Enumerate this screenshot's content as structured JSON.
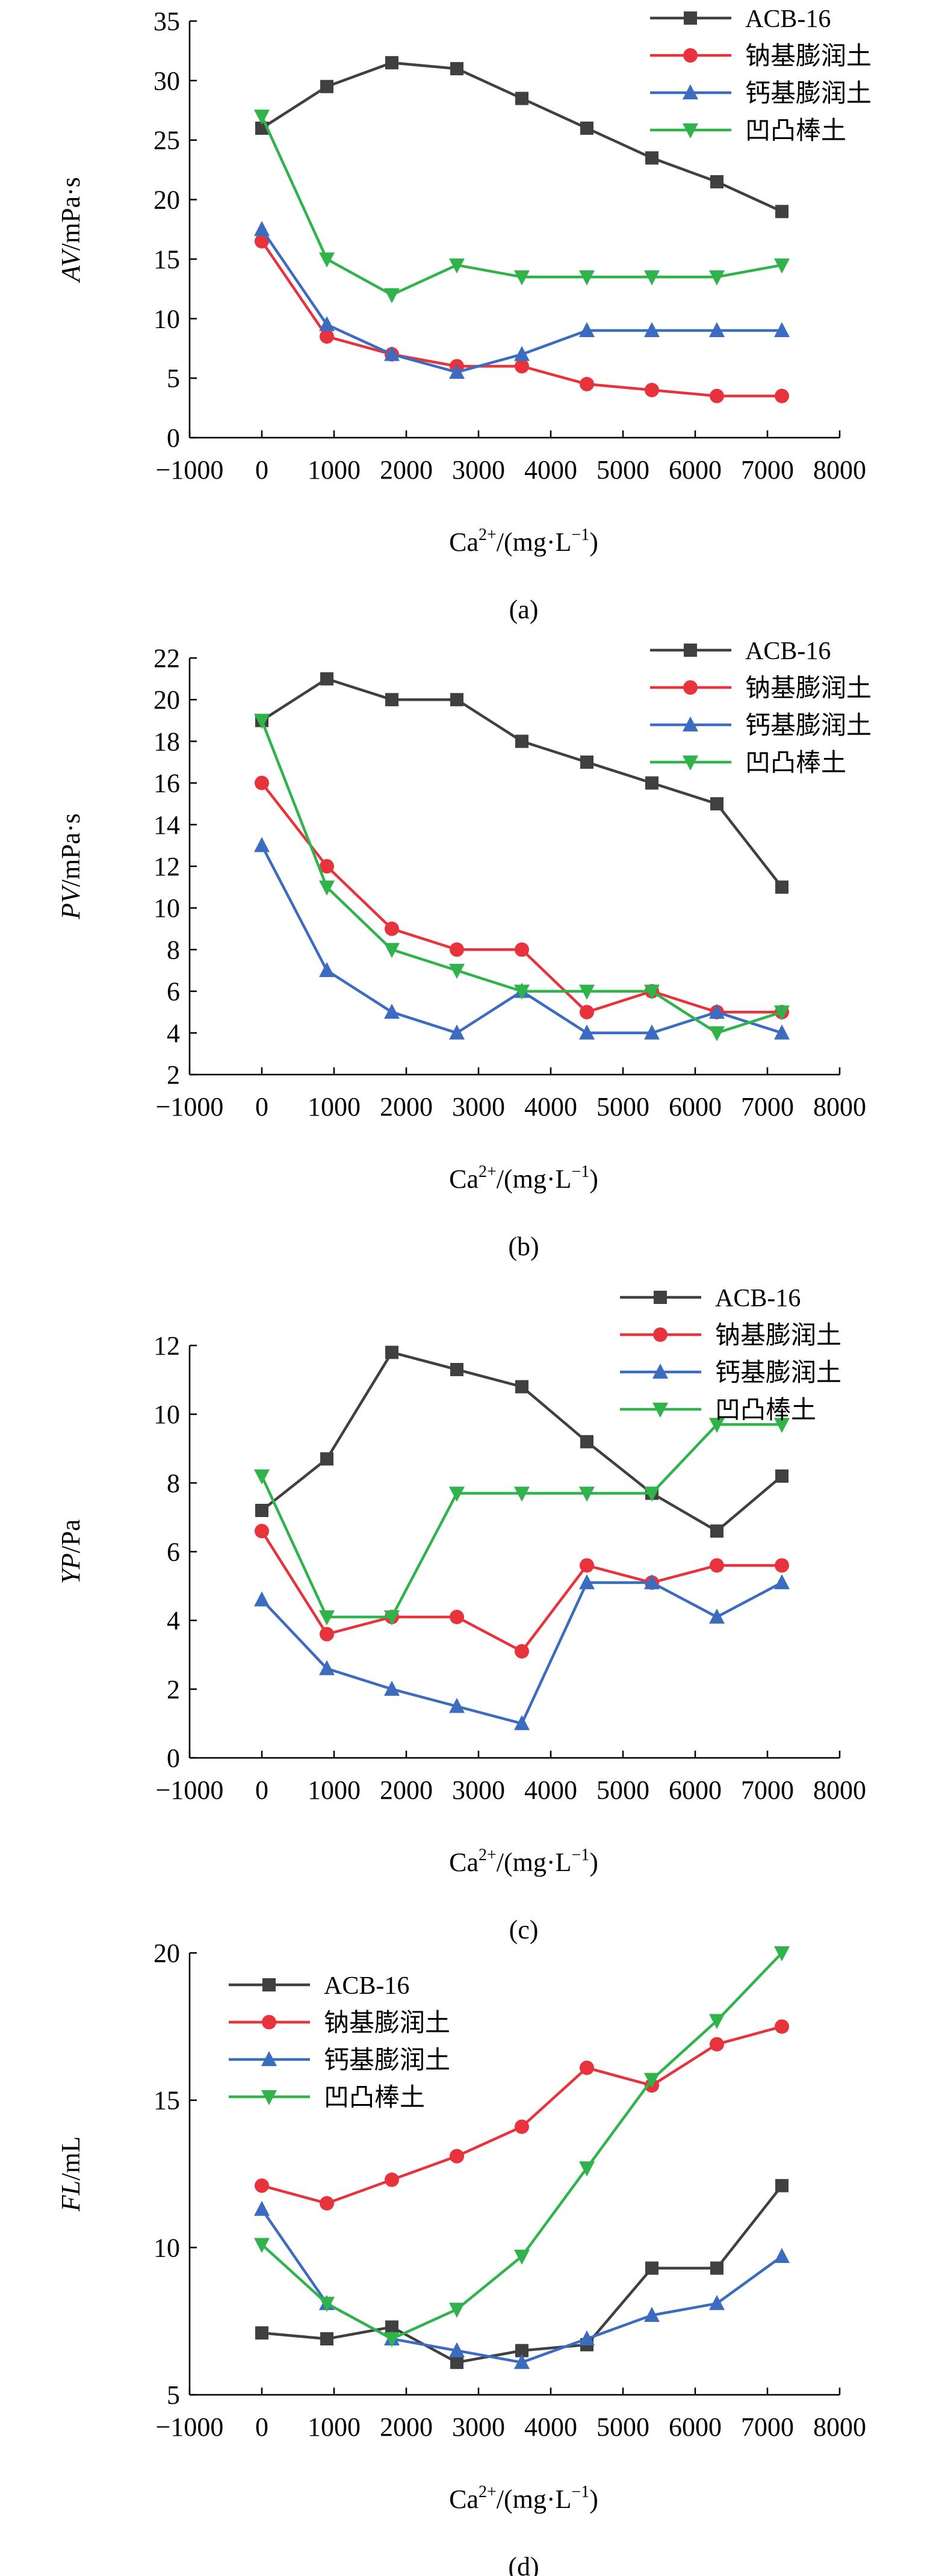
{
  "chart_data": [
    {
      "type": "line",
      "caption": "(a)",
      "ylabel": {
        "italic": "AV",
        "rest": "/mPa·s"
      },
      "xlabel": {
        "base": "Ca",
        "sup": "2+",
        "rest": "/(mg·L",
        "sup2": "−1",
        "end": ")"
      },
      "xlim": [
        -1000,
        8000
      ],
      "ylim": [
        0,
        35
      ],
      "xticks": [
        -1000,
        0,
        1000,
        2000,
        3000,
        4000,
        5000,
        6000,
        7000,
        8000
      ],
      "yticks": [
        0,
        5,
        10,
        15,
        20,
        25,
        30,
        35
      ],
      "legend_position": "top-right",
      "x": [
        0,
        900,
        1800,
        2700,
        3600,
        4500,
        5400,
        6300,
        7200
      ],
      "series": [
        {
          "name": "ACB-16",
          "color": "#404040",
          "marker": "square",
          "values": [
            26,
            29.5,
            31.5,
            31,
            28.5,
            26,
            23.5,
            21.5,
            19
          ]
        },
        {
          "name": "钠基膨润土",
          "color": "#e8323c",
          "marker": "circle",
          "values": [
            16.5,
            8.5,
            7,
            6,
            6,
            4.5,
            4,
            3.5,
            3.5
          ]
        },
        {
          "name": "钙基膨润土",
          "color": "#3c6cc0",
          "marker": "triangle-up",
          "values": [
            17.5,
            9.5,
            7,
            5.5,
            7,
            9,
            9,
            9,
            9
          ]
        },
        {
          "name": "凹凸棒土",
          "color": "#2fb34a",
          "marker": "triangle-down",
          "values": [
            27,
            15,
            12,
            14.5,
            13.5,
            13.5,
            13.5,
            13.5,
            14.5
          ]
        }
      ]
    },
    {
      "type": "line",
      "caption": "(b)",
      "ylabel": {
        "italic": "PV",
        "rest": "/mPa·s"
      },
      "xlabel": {
        "base": "Ca",
        "sup": "2+",
        "rest": "/(mg·L",
        "sup2": "−1",
        "end": ")"
      },
      "xlim": [
        -1000,
        8000
      ],
      "ylim": [
        2,
        22
      ],
      "xticks": [
        -1000,
        0,
        1000,
        2000,
        3000,
        4000,
        5000,
        6000,
        7000,
        8000
      ],
      "yticks": [
        2,
        4,
        6,
        8,
        10,
        12,
        14,
        16,
        18,
        20,
        22
      ],
      "legend_position": "top-right",
      "x": [
        0,
        900,
        1800,
        2700,
        3600,
        4500,
        5400,
        6300,
        7200
      ],
      "series": [
        {
          "name": "ACB-16",
          "color": "#404040",
          "marker": "square",
          "values": [
            19,
            21,
            20,
            20,
            18,
            17,
            16,
            15,
            11
          ]
        },
        {
          "name": "钠基膨润土",
          "color": "#e8323c",
          "marker": "circle",
          "values": [
            16,
            12,
            9,
            8,
            8,
            5,
            6,
            5,
            5
          ]
        },
        {
          "name": "钙基膨润土",
          "color": "#3c6cc0",
          "marker": "triangle-up",
          "values": [
            13,
            7,
            5,
            4,
            6,
            4,
            4,
            5,
            4
          ]
        },
        {
          "name": "凹凸棒土",
          "color": "#2fb34a",
          "marker": "triangle-down",
          "values": [
            19,
            11,
            8,
            7,
            6,
            6,
            6,
            4,
            5
          ]
        }
      ]
    },
    {
      "type": "line",
      "caption": "(c)",
      "ylabel": {
        "italic": "YP",
        "rest": "/Pa"
      },
      "xlabel": {
        "base": "Ca",
        "sup": "2+",
        "rest": "/(mg·L",
        "sup2": "−1",
        "end": ")"
      },
      "xlim": [
        -1000,
        8000
      ],
      "ylim": [
        0,
        12
      ],
      "xticks": [
        -1000,
        0,
        1000,
        2000,
        3000,
        4000,
        5000,
        6000,
        7000,
        8000
      ],
      "yticks": [
        0,
        2,
        4,
        6,
        8,
        10,
        12
      ],
      "legend_position": "top-right",
      "x": [
        0,
        900,
        1800,
        2700,
        3600,
        4500,
        5400,
        6300,
        7200
      ],
      "series": [
        {
          "name": "ACB-16",
          "color": "#404040",
          "marker": "square",
          "values": [
            7.2,
            8.7,
            11.8,
            11.3,
            10.8,
            9.2,
            7.7,
            6.6,
            8.2
          ]
        },
        {
          "name": "钠基膨润土",
          "color": "#e8323c",
          "marker": "circle",
          "values": [
            6.6,
            3.6,
            4.1,
            4.1,
            3.1,
            5.6,
            5.1,
            5.6,
            5.6
          ]
        },
        {
          "name": "钙基膨润土",
          "color": "#3c6cc0",
          "marker": "triangle-up",
          "values": [
            4.6,
            2.6,
            2.0,
            1.5,
            1.0,
            5.1,
            5.1,
            4.1,
            5.1
          ]
        },
        {
          "name": "凹凸棒土",
          "color": "#2fb34a",
          "marker": "triangle-down",
          "values": [
            8.2,
            4.1,
            4.1,
            7.7,
            7.7,
            7.7,
            7.7,
            9.7,
            9.7
          ]
        }
      ]
    },
    {
      "type": "line",
      "caption": "(d)",
      "ylabel": {
        "italic": "FL",
        "rest": "/mL"
      },
      "xlabel": {
        "base": "Ca",
        "sup": "2+",
        "rest": "/(mg·L",
        "sup2": "−1",
        "end": ")"
      },
      "xlim": [
        -1000,
        8000
      ],
      "ylim": [
        5,
        20
      ],
      "xticks": [
        -1000,
        0,
        1000,
        2000,
        3000,
        4000,
        5000,
        6000,
        7000,
        8000
      ],
      "yticks": [
        5,
        10,
        15,
        20
      ],
      "legend_position": "top-left",
      "x": [
        0,
        900,
        1800,
        2700,
        3600,
        4500,
        5400,
        6300,
        7200
      ],
      "series": [
        {
          "name": "ACB-16",
          "color": "#404040",
          "marker": "square",
          "values": [
            7.1,
            6.9,
            7.3,
            6.1,
            6.5,
            6.7,
            9.3,
            9.3,
            12.1
          ]
        },
        {
          "name": "钠基膨润土",
          "color": "#e8323c",
          "marker": "circle",
          "values": [
            12.1,
            11.5,
            12.3,
            13.1,
            14.1,
            16.1,
            15.5,
            16.9,
            17.5
          ]
        },
        {
          "name": "钙基膨润土",
          "color": "#3c6cc0",
          "marker": "triangle-up",
          "values": [
            11.3,
            8.1,
            6.9,
            6.5,
            6.1,
            6.9,
            7.7,
            8.1,
            9.7
          ]
        },
        {
          "name": "凹凸棒土",
          "color": "#2fb34a",
          "marker": "triangle-down",
          "values": [
            10.1,
            8.1,
            6.9,
            7.9,
            9.7,
            12.7,
            15.7,
            17.7,
            20.0
          ]
        }
      ]
    }
  ]
}
